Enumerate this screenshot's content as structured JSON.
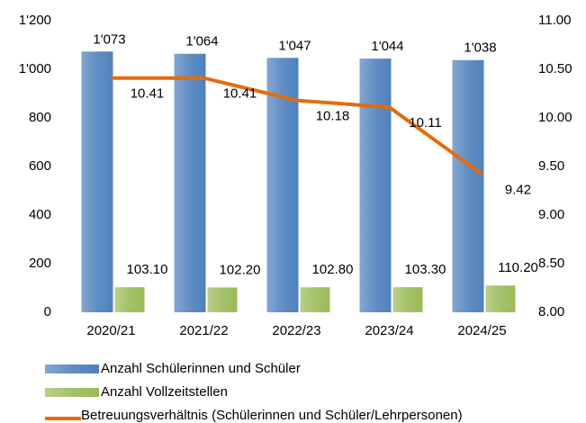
{
  "chart_data": {
    "type": "bar",
    "categories": [
      "2020/21",
      "2021/22",
      "2022/23",
      "2023/24",
      "2024/25"
    ],
    "series": [
      {
        "name": "Anzahl Schülerinnen und Schüler",
        "color": "#4f81bd",
        "values": [
          1073,
          1064,
          1047,
          1044,
          1038
        ],
        "value_labels": [
          "1'073",
          "1'064",
          "1'047",
          "1'044",
          "1'038"
        ]
      },
      {
        "name": "Anzahl Vollzeitstellen",
        "color": "#9bbb59",
        "values": [
          103.1,
          102.2,
          102.8,
          103.3,
          110.2
        ],
        "value_labels": [
          "103.10",
          "102.20",
          "102.80",
          "103.30",
          "110.20"
        ]
      },
      {
        "name": "Betreuungsverhältnis (Schülerinnen und Schüler/Lehrpersonen)",
        "color": "#e46c0a",
        "type": "line",
        "axis": "y2",
        "values": [
          10.41,
          10.41,
          10.18,
          10.11,
          9.42
        ]
      }
    ],
    "ylim": [
      0,
      1200
    ],
    "yticks": [
      0,
      200,
      400,
      600,
      800,
      {
        "value": 1000,
        "label": "1'000"
      },
      {
        "value": 1200,
        "label": "1'200"
      }
    ],
    "y2lim": [
      8,
      11
    ],
    "y2ticks": [
      {
        "value": 8,
        "label": "8.00"
      },
      {
        "value": 8.5,
        "label": "8.50"
      },
      {
        "value": 9,
        "label": "9.00"
      },
      {
        "value": 9.5,
        "label": "9.50"
      },
      {
        "value": 10,
        "label": "10.00"
      },
      {
        "value": 10.5,
        "label": "10.50"
      },
      {
        "value": 11,
        "label": "11.00"
      }
    ],
    "grid": false,
    "legend": "bottom"
  }
}
